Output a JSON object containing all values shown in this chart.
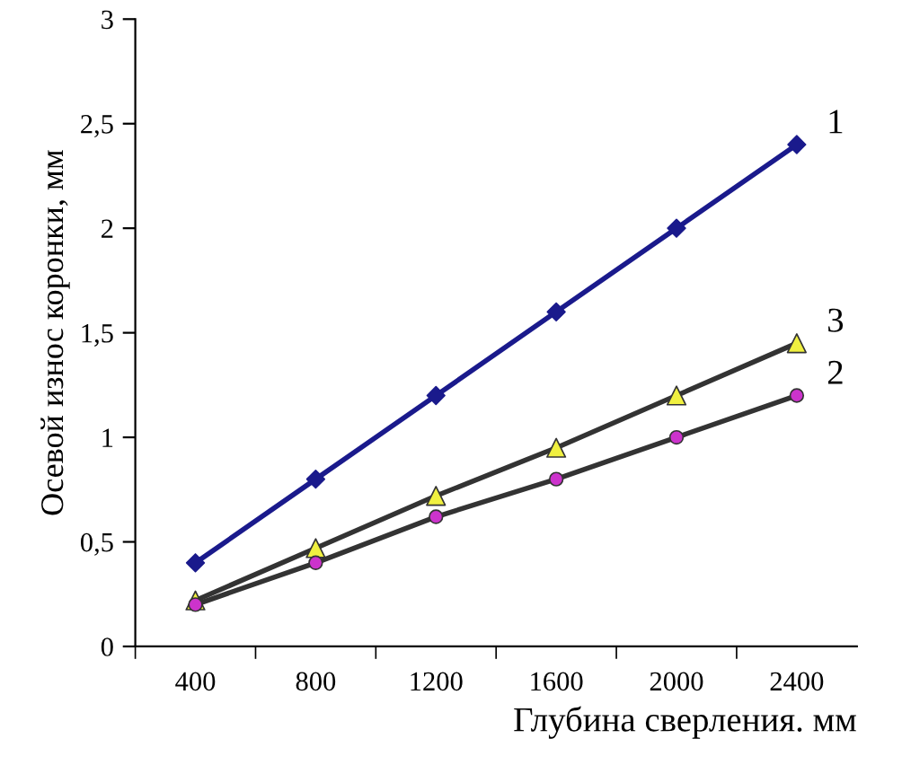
{
  "chart_data": {
    "type": "line",
    "xlabel": "Глубина сверления. мм",
    "ylabel": "Осевой износ коронки, мм",
    "categories": [
      "400",
      "800",
      "1200",
      "1600",
      "2000",
      "2400"
    ],
    "series": [
      {
        "name": "1",
        "color": "#1a1a8c",
        "colors": [
          "#1a1a8c",
          "#1a1a8c",
          "#1a1a8c",
          "#1a1a8c",
          "#1a1a8c",
          "#1a1a8c"
        ],
        "marker": "diamond",
        "values": [
          0.4,
          0.8,
          1.2,
          1.6,
          2.0,
          2.4
        ]
      },
      {
        "name": "2",
        "color": "#333333",
        "colors": [
          "#cc33cc",
          "#cc33cc",
          "#cc33cc",
          "#cc33cc",
          "#cc33cc",
          "#cc33cc"
        ],
        "marker": "circle",
        "values": [
          0.2,
          0.4,
          0.62,
          0.8,
          1.0,
          1.2
        ]
      },
      {
        "name": "3",
        "color": "#333333",
        "colors": [
          "#f0f040",
          "#f0f040",
          "#f0f040",
          "#f0f040",
          "#f0f040",
          "#f0f040"
        ],
        "marker": "triangle",
        "values": [
          0.22,
          0.47,
          0.72,
          0.95,
          1.2,
          1.45
        ]
      }
    ],
    "ylim": [
      0,
      3
    ],
    "yticks": [
      0,
      {
        "value": 0.5,
        "label": "0,5"
      },
      1,
      {
        "value": 1.5,
        "label": "1,5"
      },
      2,
      {
        "value": 2.5,
        "label": "2,5"
      },
      3
    ],
    "grid": false,
    "legend": false
  }
}
